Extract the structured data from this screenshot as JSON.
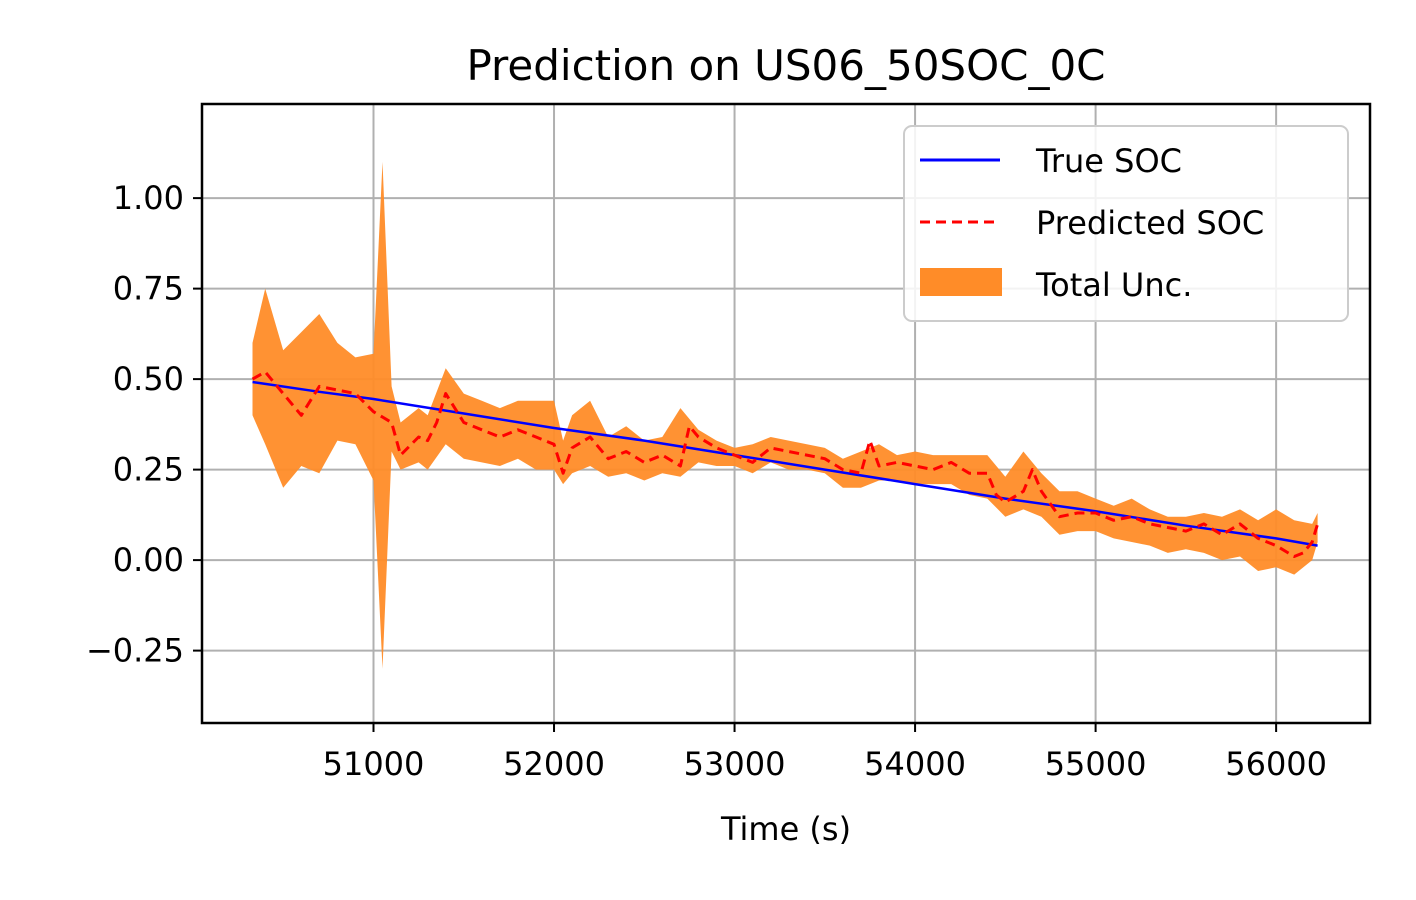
{
  "chart_data": {
    "type": "line",
    "title": "Prediction on US06_50SOC_0C",
    "xlabel": "Time (s)",
    "ylabel": "",
    "xlim": [
      50050,
      56520
    ],
    "ylim": [
      -0.45,
      1.26
    ],
    "xticks": [
      51000,
      52000,
      53000,
      54000,
      55000,
      56000
    ],
    "xtick_labels": [
      "51000",
      "52000",
      "53000",
      "54000",
      "55000",
      "56000"
    ],
    "yticks": [
      -0.25,
      0.0,
      0.25,
      0.5,
      0.75,
      1.0
    ],
    "ytick_labels": [
      "−0.25",
      "0.00",
      "0.25",
      "0.50",
      "0.75",
      "1.00"
    ],
    "grid": true,
    "legend_position": "top-right",
    "colors": {
      "true_soc": "#0000ff",
      "predicted_soc": "#ff0000",
      "uncertainty": "#ff8c28"
    },
    "series": [
      {
        "name": "True SOC",
        "style": "solid",
        "x": [
          50330,
          50700,
          51000,
          51500,
          52000,
          52500,
          53000,
          53500,
          54000,
          54500,
          55000,
          55500,
          56000,
          56230
        ],
        "y": [
          0.492,
          0.465,
          0.445,
          0.405,
          0.365,
          0.33,
          0.29,
          0.25,
          0.21,
          0.17,
          0.135,
          0.095,
          0.06,
          0.04
        ]
      },
      {
        "name": "Predicted SOC",
        "style": "dashed",
        "x": [
          50330,
          50400,
          50500,
          50600,
          50700,
          50800,
          50900,
          51000,
          51100,
          51150,
          51250,
          51300,
          51350,
          51400,
          51500,
          51600,
          51700,
          51800,
          51900,
          52000,
          52050,
          52100,
          52200,
          52300,
          52400,
          52500,
          52600,
          52700,
          52750,
          52800,
          52900,
          53000,
          53100,
          53200,
          53300,
          53400,
          53500,
          53600,
          53700,
          53750,
          53800,
          53900,
          54000,
          54100,
          54200,
          54300,
          54400,
          54450,
          54500,
          54600,
          54650,
          54700,
          54800,
          54900,
          55000,
          55100,
          55200,
          55300,
          55400,
          55500,
          55600,
          55700,
          55800,
          55900,
          56000,
          56100,
          56150,
          56200,
          56230
        ],
        "y": [
          0.5,
          0.52,
          0.46,
          0.4,
          0.48,
          0.47,
          0.46,
          0.41,
          0.38,
          0.29,
          0.34,
          0.33,
          0.38,
          0.46,
          0.38,
          0.36,
          0.34,
          0.36,
          0.34,
          0.32,
          0.24,
          0.31,
          0.34,
          0.28,
          0.3,
          0.27,
          0.29,
          0.26,
          0.37,
          0.34,
          0.31,
          0.29,
          0.27,
          0.31,
          0.3,
          0.29,
          0.28,
          0.25,
          0.24,
          0.33,
          0.26,
          0.27,
          0.26,
          0.25,
          0.27,
          0.24,
          0.24,
          0.18,
          0.16,
          0.19,
          0.25,
          0.19,
          0.12,
          0.13,
          0.13,
          0.11,
          0.12,
          0.1,
          0.09,
          0.08,
          0.1,
          0.07,
          0.1,
          0.06,
          0.04,
          0.01,
          0.02,
          0.05,
          0.1
        ]
      },
      {
        "name": "Total Unc.",
        "style": "band",
        "x": [
          50330,
          50400,
          50500,
          50600,
          50700,
          50800,
          50900,
          51000,
          51050,
          51100,
          51150,
          51250,
          51300,
          51400,
          51500,
          51600,
          51700,
          51800,
          51900,
          52000,
          52050,
          52100,
          52200,
          52300,
          52400,
          52500,
          52600,
          52700,
          52800,
          52900,
          53000,
          53100,
          53200,
          53300,
          53400,
          53500,
          53600,
          53700,
          53800,
          53900,
          54000,
          54100,
          54200,
          54300,
          54400,
          54500,
          54600,
          54700,
          54800,
          54900,
          55000,
          55100,
          55200,
          55300,
          55400,
          55500,
          55600,
          55700,
          55800,
          55900,
          56000,
          56100,
          56200,
          56230
        ],
        "lower": [
          0.4,
          0.32,
          0.2,
          0.26,
          0.24,
          0.33,
          0.32,
          0.22,
          -0.3,
          0.3,
          0.25,
          0.27,
          0.25,
          0.32,
          0.28,
          0.27,
          0.26,
          0.28,
          0.25,
          0.25,
          0.21,
          0.24,
          0.26,
          0.23,
          0.24,
          0.22,
          0.24,
          0.23,
          0.27,
          0.26,
          0.26,
          0.24,
          0.27,
          0.25,
          0.25,
          0.24,
          0.2,
          0.2,
          0.22,
          0.22,
          0.21,
          0.21,
          0.21,
          0.18,
          0.17,
          0.12,
          0.14,
          0.12,
          0.07,
          0.08,
          0.08,
          0.06,
          0.05,
          0.04,
          0.02,
          0.03,
          0.02,
          0.0,
          0.01,
          -0.03,
          -0.02,
          -0.04,
          0.0,
          0.05
        ],
        "upper": [
          0.6,
          0.75,
          0.58,
          0.63,
          0.68,
          0.6,
          0.56,
          0.57,
          1.1,
          0.48,
          0.38,
          0.42,
          0.4,
          0.53,
          0.46,
          0.44,
          0.42,
          0.44,
          0.44,
          0.44,
          0.33,
          0.4,
          0.44,
          0.34,
          0.37,
          0.33,
          0.34,
          0.42,
          0.36,
          0.33,
          0.31,
          0.32,
          0.34,
          0.33,
          0.32,
          0.31,
          0.28,
          0.3,
          0.32,
          0.29,
          0.3,
          0.29,
          0.29,
          0.29,
          0.29,
          0.23,
          0.3,
          0.24,
          0.19,
          0.19,
          0.17,
          0.15,
          0.17,
          0.14,
          0.12,
          0.12,
          0.13,
          0.12,
          0.14,
          0.11,
          0.14,
          0.11,
          0.1,
          0.13
        ]
      }
    ]
  }
}
